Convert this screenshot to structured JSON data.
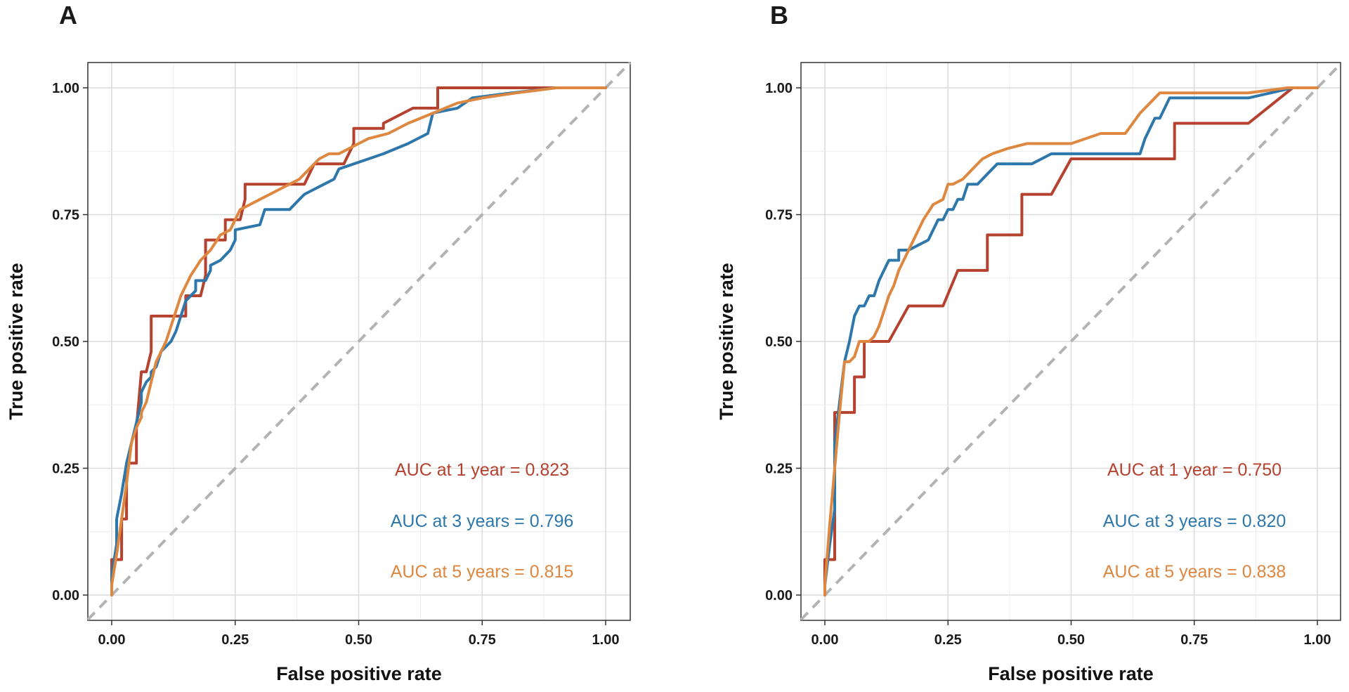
{
  "chart_data": [
    {
      "panel": "A",
      "type": "line",
      "xlabel": "False positive rate",
      "ylabel": "True positive rate",
      "xlim": [
        0,
        1
      ],
      "ylim": [
        0,
        1
      ],
      "xticks": [
        "0.00",
        "0.25",
        "0.50",
        "0.75",
        "1.00"
      ],
      "yticks": [
        "0.00",
        "0.25",
        "0.50",
        "0.75",
        "1.00"
      ],
      "grid": true,
      "reference_line": "diagonal",
      "series": [
        {
          "name": "1 year",
          "color": "#b5412f",
          "label": "AUC at 1 year = 0.823",
          "x": [
            0,
            0,
            0.02,
            0.02,
            0.03,
            0.03,
            0.04,
            0.05,
            0.05,
            0.06,
            0.07,
            0.08,
            0.08,
            0.14,
            0.15,
            0.15,
            0.18,
            0.19,
            0.19,
            0.22,
            0.23,
            0.23,
            0.26,
            0.27,
            0.27,
            0.39,
            0.41,
            0.41,
            0.47,
            0.49,
            0.49,
            0.54,
            0.55,
            0.55,
            0.61,
            0.66,
            0.66,
            1.0
          ],
          "y": [
            0,
            0.07,
            0.07,
            0.15,
            0.15,
            0.26,
            0.26,
            0.26,
            0.33,
            0.44,
            0.44,
            0.48,
            0.55,
            0.55,
            0.55,
            0.59,
            0.59,
            0.63,
            0.7,
            0.7,
            0.7,
            0.74,
            0.74,
            0.78,
            0.81,
            0.81,
            0.85,
            0.85,
            0.85,
            0.89,
            0.92,
            0.92,
            0.92,
            0.93,
            0.96,
            0.96,
            1.0,
            1.0
          ]
        },
        {
          "name": "3 years",
          "color": "#2d77ab",
          "label": "AUC at 3 years = 0.796",
          "x": [
            0,
            0,
            0.01,
            0.01,
            0.02,
            0.03,
            0.04,
            0.05,
            0.06,
            0.06,
            0.07,
            0.08,
            0.08,
            0.09,
            0.1,
            0.12,
            0.13,
            0.14,
            0.15,
            0.17,
            0.17,
            0.19,
            0.2,
            0.2,
            0.22,
            0.23,
            0.24,
            0.25,
            0.25,
            0.3,
            0.31,
            0.36,
            0.38,
            0.39,
            0.41,
            0.43,
            0.45,
            0.46,
            0.49,
            0.52,
            0.55,
            0.6,
            0.64,
            0.64,
            0.65,
            0.7,
            0.73,
            0.81,
            0.9,
            1.0
          ],
          "y": [
            0,
            0.04,
            0.1,
            0.15,
            0.2,
            0.26,
            0.3,
            0.34,
            0.38,
            0.4,
            0.42,
            0.43,
            0.44,
            0.45,
            0.48,
            0.5,
            0.52,
            0.55,
            0.58,
            0.6,
            0.62,
            0.62,
            0.64,
            0.65,
            0.66,
            0.67,
            0.68,
            0.7,
            0.72,
            0.73,
            0.76,
            0.76,
            0.78,
            0.79,
            0.8,
            0.81,
            0.82,
            0.84,
            0.85,
            0.86,
            0.87,
            0.89,
            0.91,
            0.91,
            0.95,
            0.96,
            0.98,
            0.99,
            1.0,
            1.0
          ]
        },
        {
          "name": "5 years",
          "color": "#dd8740",
          "label": "AUC at 5 years = 0.815",
          "x": [
            0,
            0,
            0.01,
            0.02,
            0.03,
            0.04,
            0.05,
            0.06,
            0.06,
            0.07,
            0.08,
            0.09,
            0.1,
            0.11,
            0.12,
            0.13,
            0.14,
            0.15,
            0.16,
            0.18,
            0.2,
            0.22,
            0.24,
            0.25,
            0.26,
            0.28,
            0.3,
            0.32,
            0.34,
            0.36,
            0.38,
            0.39,
            0.4,
            0.42,
            0.44,
            0.46,
            0.48,
            0.5,
            0.52,
            0.56,
            0.6,
            0.65,
            0.7,
            0.75,
            0.82,
            0.9,
            1.0
          ],
          "y": [
            0,
            0.02,
            0.08,
            0.15,
            0.22,
            0.3,
            0.33,
            0.35,
            0.36,
            0.38,
            0.42,
            0.46,
            0.48,
            0.5,
            0.53,
            0.56,
            0.59,
            0.61,
            0.63,
            0.66,
            0.68,
            0.71,
            0.72,
            0.74,
            0.76,
            0.77,
            0.78,
            0.79,
            0.8,
            0.81,
            0.82,
            0.83,
            0.84,
            0.86,
            0.87,
            0.87,
            0.88,
            0.89,
            0.9,
            0.91,
            0.93,
            0.95,
            0.97,
            0.98,
            0.99,
            1.0,
            1.0
          ]
        }
      ]
    },
    {
      "panel": "B",
      "type": "line",
      "xlabel": "False positive rate",
      "ylabel": "True positive rate",
      "xlim": [
        0,
        1
      ],
      "ylim": [
        0,
        1
      ],
      "xticks": [
        "0.00",
        "0.25",
        "0.50",
        "0.75",
        "1.00"
      ],
      "yticks": [
        "0.00",
        "0.25",
        "0.50",
        "0.75",
        "1.00"
      ],
      "grid": true,
      "reference_line": "diagonal",
      "series": [
        {
          "name": "1 year",
          "color": "#b5412f",
          "label": "AUC at 1 year = 0.750",
          "x": [
            0,
            0,
            0.02,
            0.02,
            0.03,
            0.03,
            0.06,
            0.06,
            0.08,
            0.08,
            0.1,
            0.13,
            0.17,
            0.17,
            0.24,
            0.24,
            0.27,
            0.27,
            0.33,
            0.33,
            0.4,
            0.4,
            0.46,
            0.5,
            0.5,
            0.71,
            0.71,
            0.86,
            0.86,
            0.95,
            1.0
          ],
          "y": [
            0,
            0.07,
            0.07,
            0.36,
            0.36,
            0.36,
            0.36,
            0.43,
            0.43,
            0.5,
            0.5,
            0.5,
            0.57,
            0.57,
            0.57,
            0.57,
            0.64,
            0.64,
            0.64,
            0.71,
            0.71,
            0.79,
            0.79,
            0.86,
            0.86,
            0.86,
            0.93,
            0.93,
            0.93,
            1.0,
            1.0
          ]
        },
        {
          "name": "3 years",
          "color": "#2d77ab",
          "label": "AUC at 3 years = 0.820",
          "x": [
            0,
            0,
            0.01,
            0.02,
            0.02,
            0.03,
            0.04,
            0.05,
            0.06,
            0.06,
            0.07,
            0.08,
            0.09,
            0.1,
            0.11,
            0.12,
            0.13,
            0.15,
            0.15,
            0.17,
            0.19,
            0.21,
            0.23,
            0.24,
            0.25,
            0.26,
            0.27,
            0.28,
            0.29,
            0.31,
            0.33,
            0.35,
            0.38,
            0.42,
            0.46,
            0.5,
            0.55,
            0.6,
            0.64,
            0.65,
            0.66,
            0.67,
            0.68,
            0.7,
            0.72,
            0.76,
            0.86,
            0.95,
            1.0
          ],
          "y": [
            0,
            0.02,
            0.1,
            0.17,
            0.3,
            0.38,
            0.46,
            0.5,
            0.55,
            0.55,
            0.57,
            0.57,
            0.59,
            0.59,
            0.62,
            0.64,
            0.66,
            0.66,
            0.68,
            0.68,
            0.69,
            0.7,
            0.74,
            0.74,
            0.76,
            0.76,
            0.78,
            0.78,
            0.81,
            0.81,
            0.83,
            0.85,
            0.85,
            0.85,
            0.87,
            0.87,
            0.87,
            0.87,
            0.87,
            0.9,
            0.92,
            0.94,
            0.94,
            0.98,
            0.98,
            0.98,
            0.98,
            1.0,
            1.0
          ]
        },
        {
          "name": "5 years",
          "color": "#dd8740",
          "label": "AUC at 5 years = 0.838",
          "x": [
            0,
            0,
            0.01,
            0.02,
            0.03,
            0.04,
            0.05,
            0.06,
            0.07,
            0.08,
            0.09,
            0.1,
            0.11,
            0.12,
            0.13,
            0.14,
            0.15,
            0.16,
            0.18,
            0.2,
            0.22,
            0.24,
            0.25,
            0.26,
            0.28,
            0.3,
            0.32,
            0.34,
            0.37,
            0.41,
            0.45,
            0.5,
            0.56,
            0.61,
            0.64,
            0.66,
            0.68,
            0.72,
            0.78,
            0.86,
            0.94,
            1.0
          ],
          "y": [
            0,
            0.02,
            0.14,
            0.25,
            0.36,
            0.46,
            0.46,
            0.47,
            0.5,
            0.5,
            0.5,
            0.51,
            0.53,
            0.56,
            0.59,
            0.61,
            0.64,
            0.66,
            0.7,
            0.74,
            0.77,
            0.78,
            0.81,
            0.81,
            0.82,
            0.84,
            0.86,
            0.87,
            0.88,
            0.89,
            0.89,
            0.89,
            0.91,
            0.91,
            0.95,
            0.97,
            0.99,
            0.99,
            0.99,
            0.99,
            1.0,
            1.0
          ]
        }
      ]
    }
  ]
}
